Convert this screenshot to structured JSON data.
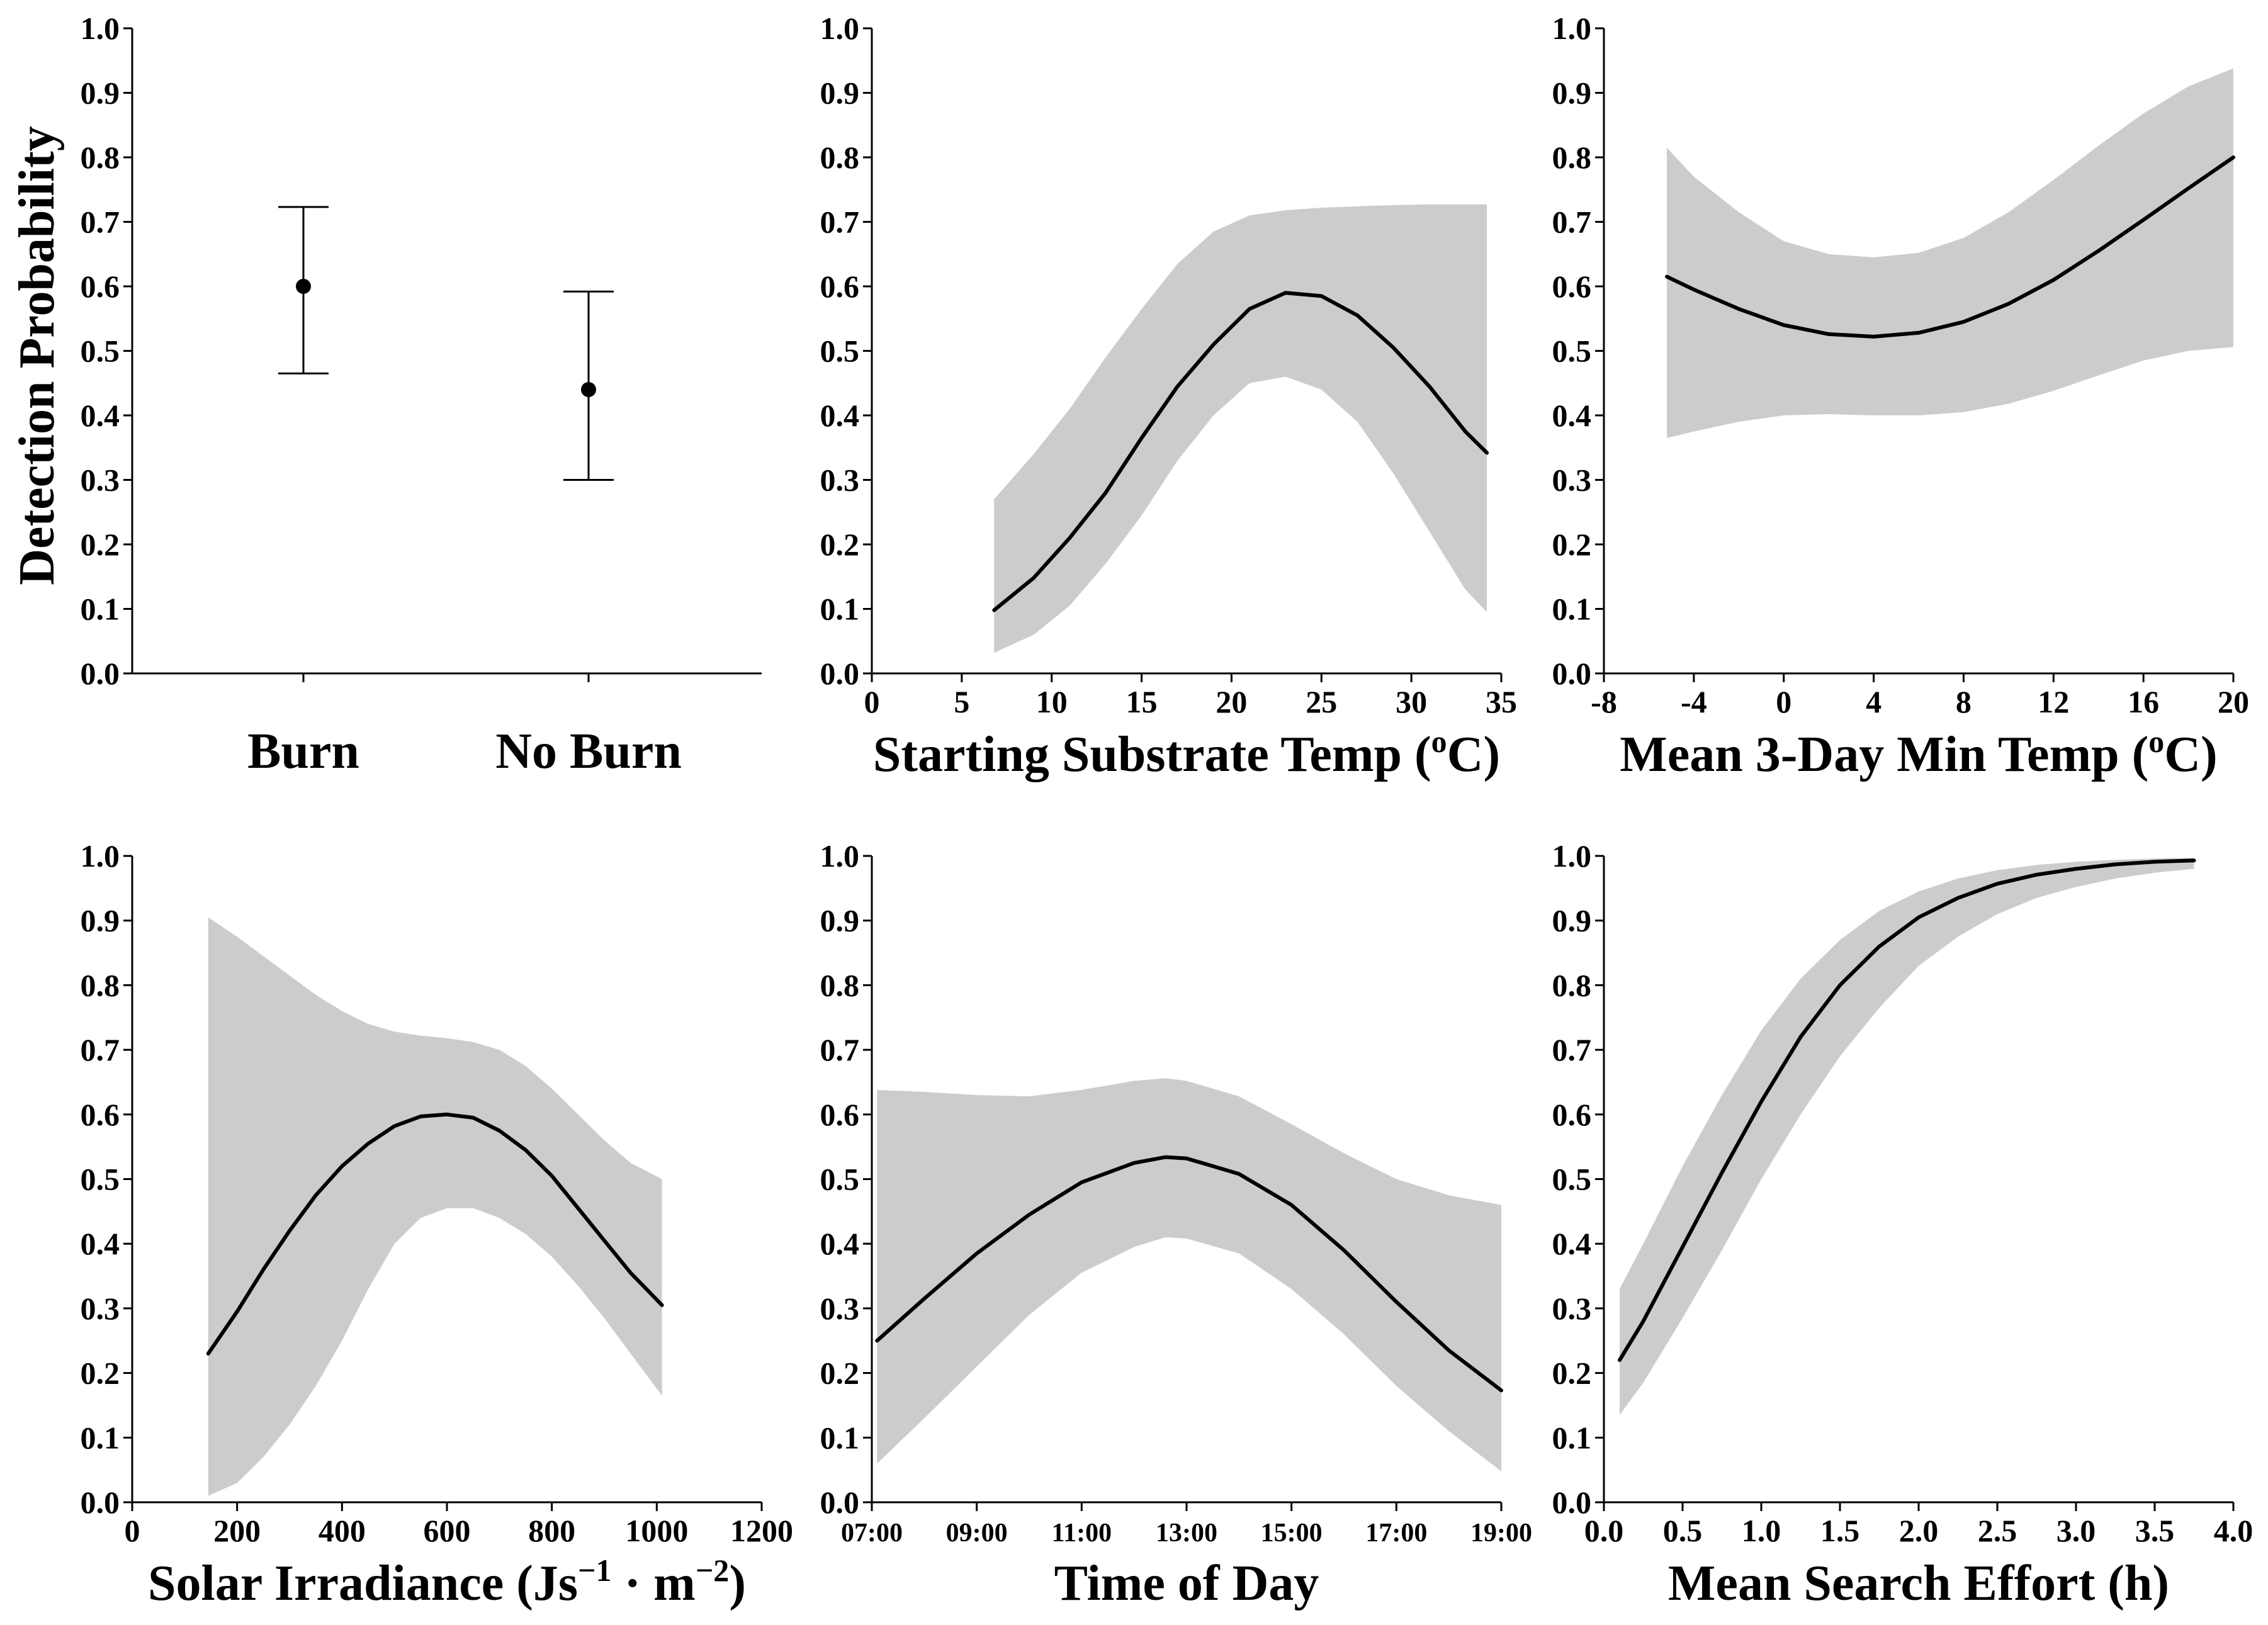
{
  "figure": {
    "ylabel": "Detection Probability",
    "colors": {
      "band": "#cccccc",
      "line": "#000000"
    }
  },
  "chart_data": [
    {
      "id": "burn",
      "type": "scatter",
      "title": "",
      "xlabel": "",
      "ylabel": "Detection Probability",
      "ylim": [
        0,
        1
      ],
      "yticks": [
        "0.0",
        "0.1",
        "0.2",
        "0.3",
        "0.4",
        "0.5",
        "0.6",
        "0.7",
        "0.8",
        "0.9",
        "1.0"
      ],
      "categories": [
        "Burn",
        "No Burn"
      ],
      "values": [
        0.6,
        0.44
      ],
      "lower": [
        0.465,
        0.3
      ],
      "upper": [
        0.723,
        0.592
      ]
    },
    {
      "id": "substrate",
      "type": "line",
      "xlabel": "Starting Substrate Temp (°C)",
      "xlabel_parts": {
        "pre": "Starting Substrate Temp (",
        "sup": "o",
        "post": "C)"
      },
      "xlim": [
        0,
        35
      ],
      "xticks": [
        "0",
        "5",
        "10",
        "15",
        "20",
        "25",
        "30",
        "35"
      ],
      "ylim": [
        0,
        1
      ],
      "yticks": [
        "0.0",
        "0.1",
        "0.2",
        "0.3",
        "0.4",
        "0.5",
        "0.6",
        "0.7",
        "0.8",
        "0.9",
        "1.0"
      ],
      "x": [
        6.8,
        9,
        11,
        13,
        15,
        17,
        19,
        21,
        23,
        25,
        27,
        29,
        31,
        33,
        34.2
      ],
      "y": [
        0.098,
        0.148,
        0.21,
        0.28,
        0.365,
        0.445,
        0.51,
        0.565,
        0.59,
        0.585,
        0.555,
        0.505,
        0.445,
        0.375,
        0.342
      ],
      "lower": [
        0.032,
        0.06,
        0.105,
        0.17,
        0.245,
        0.33,
        0.4,
        0.45,
        0.46,
        0.44,
        0.39,
        0.31,
        0.22,
        0.13,
        0.095
      ],
      "upper": [
        0.27,
        0.34,
        0.41,
        0.49,
        0.565,
        0.635,
        0.685,
        0.71,
        0.718,
        0.722,
        0.724,
        0.726,
        0.727,
        0.727,
        0.727
      ]
    },
    {
      "id": "mintemp",
      "type": "line",
      "xlabel": "Mean 3-Day Min Temp (°C)",
      "xlabel_parts": {
        "pre": "Mean 3-Day Min Temp (",
        "sup": "o",
        "post": "C)"
      },
      "xlim": [
        -8,
        20
      ],
      "xticks": [
        "-8",
        "-4",
        "0",
        "4",
        "8",
        "12",
        "16",
        "20"
      ],
      "ylim": [
        0,
        1
      ],
      "yticks": [
        "0.0",
        "0.1",
        "0.2",
        "0.3",
        "0.4",
        "0.5",
        "0.6",
        "0.7",
        "0.8",
        "0.9",
        "1.0"
      ],
      "x": [
        -5.2,
        -4,
        -2,
        0,
        2,
        4,
        6,
        8,
        10,
        12,
        14,
        16,
        18,
        20
      ],
      "y": [
        0.615,
        0.595,
        0.565,
        0.54,
        0.526,
        0.522,
        0.528,
        0.545,
        0.573,
        0.61,
        0.655,
        0.703,
        0.752,
        0.8
      ],
      "lower": [
        0.365,
        0.375,
        0.39,
        0.4,
        0.402,
        0.4,
        0.4,
        0.405,
        0.418,
        0.438,
        0.462,
        0.485,
        0.5,
        0.506
      ],
      "upper": [
        0.815,
        0.77,
        0.715,
        0.67,
        0.65,
        0.645,
        0.652,
        0.675,
        0.715,
        0.765,
        0.818,
        0.868,
        0.91,
        0.938
      ]
    },
    {
      "id": "solar",
      "type": "line",
      "xlabel": "Solar Irradiance (Js⁻¹ · m⁻²)",
      "xlabel_parts": {
        "pre": "Solar Irradiance (Js",
        "sup1": "−1",
        "mid": " · m",
        "sup2": "−2",
        "post": ")"
      },
      "xlim": [
        0,
        1200
      ],
      "xticks": [
        "0",
        "200",
        "400",
        "600",
        "800",
        "1000",
        "1200"
      ],
      "ylim": [
        0,
        1
      ],
      "yticks": [
        "0.0",
        "0.1",
        "0.2",
        "0.3",
        "0.4",
        "0.5",
        "0.6",
        "0.7",
        "0.8",
        "0.9",
        "1.0"
      ],
      "x": [
        145,
        200,
        250,
        300,
        350,
        400,
        450,
        500,
        550,
        600,
        650,
        700,
        750,
        800,
        850,
        900,
        950,
        1010
      ],
      "y": [
        0.23,
        0.295,
        0.36,
        0.42,
        0.475,
        0.52,
        0.555,
        0.582,
        0.597,
        0.6,
        0.595,
        0.575,
        0.545,
        0.505,
        0.455,
        0.405,
        0.355,
        0.305
      ],
      "lower": [
        0.01,
        0.03,
        0.07,
        0.12,
        0.18,
        0.25,
        0.33,
        0.4,
        0.44,
        0.455,
        0.455,
        0.44,
        0.415,
        0.38,
        0.335,
        0.285,
        0.23,
        0.165
      ],
      "upper": [
        0.905,
        0.875,
        0.845,
        0.815,
        0.785,
        0.76,
        0.74,
        0.728,
        0.722,
        0.718,
        0.712,
        0.7,
        0.675,
        0.64,
        0.6,
        0.56,
        0.525,
        0.5
      ]
    },
    {
      "id": "timeofday",
      "type": "line",
      "xlabel": "Time of Day",
      "xlim": [
        7,
        19
      ],
      "xticks": [
        "07:00",
        "09:00",
        "11:00",
        "13:00",
        "15:00",
        "17:00",
        "19:00"
      ],
      "ylim": [
        0,
        1
      ],
      "yticks": [
        "0.0",
        "0.1",
        "0.2",
        "0.3",
        "0.4",
        "0.5",
        "0.6",
        "0.7",
        "0.8",
        "0.9",
        "1.0"
      ],
      "x": [
        7.1,
        8,
        9,
        10,
        11,
        12,
        12.6,
        13,
        14,
        15,
        16,
        17,
        18,
        19
      ],
      "y": [
        0.25,
        0.315,
        0.385,
        0.445,
        0.495,
        0.525,
        0.534,
        0.532,
        0.508,
        0.46,
        0.39,
        0.31,
        0.235,
        0.173
      ],
      "lower": [
        0.06,
        0.13,
        0.21,
        0.29,
        0.355,
        0.395,
        0.41,
        0.408,
        0.385,
        0.33,
        0.26,
        0.18,
        0.11,
        0.048
      ],
      "upper": [
        0.638,
        0.635,
        0.63,
        0.628,
        0.638,
        0.652,
        0.656,
        0.652,
        0.628,
        0.585,
        0.54,
        0.5,
        0.475,
        0.46
      ]
    },
    {
      "id": "effort",
      "type": "line",
      "xlabel": "Mean Search Effort (h)",
      "xlim": [
        0,
        4
      ],
      "xticks": [
        "0.0",
        "0.5",
        "1.0",
        "1.5",
        "2.0",
        "2.5",
        "3.0",
        "3.5",
        "4.0"
      ],
      "ylim": [
        0,
        1
      ],
      "yticks": [
        "0.0",
        "0.1",
        "0.2",
        "0.3",
        "0.4",
        "0.5",
        "0.6",
        "0.7",
        "0.8",
        "0.9",
        "1.0"
      ],
      "x": [
        0.1,
        0.25,
        0.5,
        0.75,
        1.0,
        1.25,
        1.5,
        1.75,
        2.0,
        2.25,
        2.5,
        2.75,
        3.0,
        3.25,
        3.5,
        3.75
      ],
      "y": [
        0.22,
        0.28,
        0.395,
        0.51,
        0.62,
        0.72,
        0.8,
        0.86,
        0.905,
        0.935,
        0.957,
        0.971,
        0.98,
        0.987,
        0.991,
        0.993
      ],
      "lower": [
        0.135,
        0.185,
        0.285,
        0.39,
        0.5,
        0.6,
        0.69,
        0.765,
        0.83,
        0.875,
        0.91,
        0.935,
        0.952,
        0.965,
        0.974,
        0.98
      ],
      "upper": [
        0.33,
        0.4,
        0.52,
        0.63,
        0.73,
        0.81,
        0.87,
        0.915,
        0.945,
        0.965,
        0.978,
        0.986,
        0.991,
        0.994,
        0.996,
        0.997
      ]
    }
  ]
}
